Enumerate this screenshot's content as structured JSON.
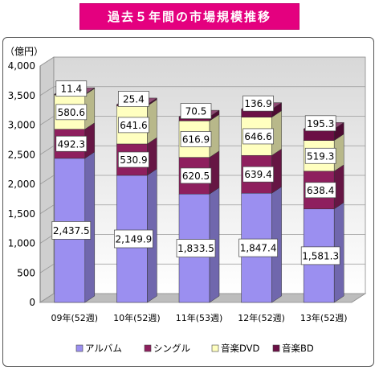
{
  "title": "過去５年間の市場規模推移",
  "chart_data": {
    "type": "bar",
    "stacked": true,
    "ylabel": "（億円）",
    "ylim": [
      0,
      4000
    ],
    "yticks": [
      0,
      500,
      1000,
      1500,
      2000,
      2500,
      3000,
      3500,
      4000
    ],
    "ytick_labels": [
      "0",
      "500",
      "1,000",
      "1,500",
      "2,000",
      "2,500",
      "3,000",
      "3,500",
      "4,000"
    ],
    "categories": [
      "09年(52週)",
      "10年(52週)",
      "11年(53週)",
      "12年(52週)",
      "13年(52週)"
    ],
    "series": [
      {
        "name": "アルバム",
        "color": "#9b8ff0",
        "values": [
          2437.5,
          2149.9,
          1833.5,
          1847.4,
          1581.3
        ],
        "labels": [
          "2,437.5",
          "2,149.9",
          "1,833.5",
          "1,847.4",
          "1,581.3"
        ]
      },
      {
        "name": "シングル",
        "color": "#8e1f5e",
        "values": [
          492.3,
          530.9,
          620.5,
          639.4,
          638.4
        ],
        "labels": [
          "492.3",
          "530.9",
          "620.5",
          "639.4",
          "638.4"
        ]
      },
      {
        "name": "音楽DVD",
        "color": "#ffffc0",
        "values": [
          580.6,
          641.6,
          616.9,
          646.6,
          519.3
        ],
        "labels": [
          "580.6",
          "641.6",
          "616.9",
          "646.6",
          "519.3"
        ]
      },
      {
        "name": "音楽BD",
        "color": "#6b0f45",
        "values": [
          11.4,
          25.4,
          70.5,
          136.9,
          195.3
        ],
        "labels": [
          "11.4",
          "25.4",
          "70.5",
          "136.9",
          "195.3"
        ]
      }
    ],
    "grid": true,
    "legend": "bottom"
  }
}
